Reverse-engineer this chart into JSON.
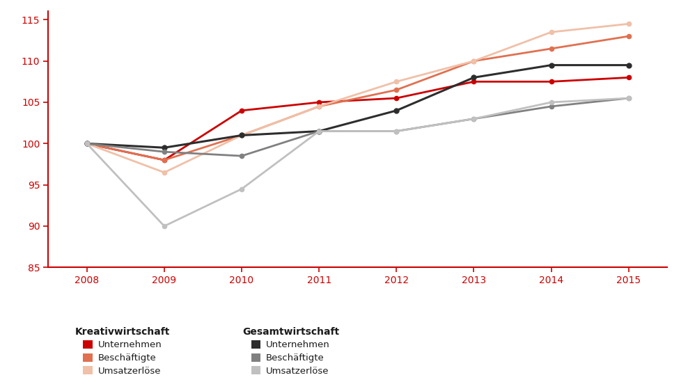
{
  "years": [
    2008,
    2009,
    2010,
    2011,
    2012,
    2013,
    2014,
    2015
  ],
  "kreativ_unternehmen": [
    100,
    98,
    104,
    105,
    105.5,
    107.5,
    107.5,
    108
  ],
  "kreativ_beschaeftigte": [
    100,
    98,
    101,
    104.5,
    106.5,
    110,
    111.5,
    113
  ],
  "kreativ_umsatzerloese": [
    100,
    96.5,
    101,
    104.5,
    107.5,
    110,
    113.5,
    114.5
  ],
  "gesamt_unternehmen": [
    100,
    99.5,
    101,
    101.5,
    104,
    108,
    109.5,
    109.5
  ],
  "gesamt_beschaeftigte": [
    100,
    99,
    98.5,
    101.5,
    101.5,
    103,
    104.5,
    105.5
  ],
  "gesamt_umsatzerloese": [
    100,
    90,
    94.5,
    101.5,
    101.5,
    103,
    105,
    105.5
  ],
  "colors": {
    "kreativ_unternehmen": "#cc0000",
    "kreativ_beschaeftigte": "#e07050",
    "kreativ_umsatzerloese": "#f0c0a8",
    "gesamt_unternehmen": "#2d2d2d",
    "gesamt_beschaeftigte": "#808080",
    "gesamt_umsatzerloese": "#c0c0c0"
  },
  "ylim": [
    85,
    116
  ],
  "yticks": [
    85,
    90,
    95,
    100,
    105,
    110,
    115
  ],
  "background_color": "#ffffff",
  "ax_background": "#ffffff",
  "spine_color": "#cc0000",
  "tick_color": "#cc0000",
  "legend_kreativ_title": "Kreativwirtschaft",
  "legend_gesamt_title": "Gesamtwirtschaft",
  "legend_items": [
    "Unternehmen",
    "Beschäftigte",
    "Umsatzerlöse"
  ]
}
